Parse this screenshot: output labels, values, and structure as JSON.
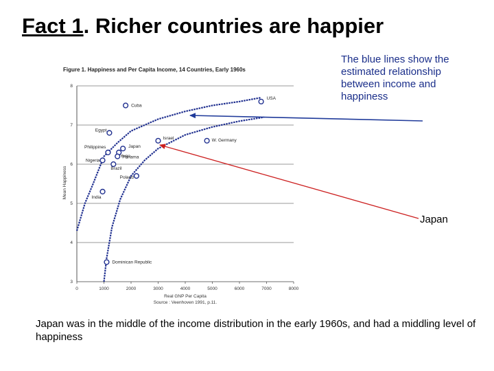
{
  "slide": {
    "title_prefix": "Fact 1",
    "title_rest": ". Richer countries are happier",
    "blue_note": "The blue lines show the estimated relationship between income and happiness",
    "japan_note": "Japan",
    "bottom_note": "Japan was in the middle of the income distribution in the early 1960s, and had a middling level of happiness"
  },
  "colors": {
    "curve": "#1f2f8f",
    "blue_arrow": "#1f3a9a",
    "red_arrow": "#cc1f1f",
    "axis": "#555555"
  },
  "chart_data": {
    "type": "scatter",
    "title": "Figure 1. Happiness and Per Capita Income, 14 Countries, Early 1960s",
    "xlabel": "Real GNP Per Capita",
    "ylabel": "Mean Happiness",
    "source": "Source : Veenhoven 1991, p.11.",
    "xlim": [
      0,
      8000
    ],
    "ylim": [
      3,
      8
    ],
    "xticks": [
      "0",
      "1000",
      "2000",
      "3000",
      "4000",
      "5000",
      "6000",
      "7000",
      "8000"
    ],
    "yticks": [
      "3",
      "4",
      "5",
      "6",
      "7",
      "8"
    ],
    "points": [
      {
        "label": "Cuba",
        "x": 1800,
        "y": 7.5
      },
      {
        "label": "USA",
        "x": 6800,
        "y": 7.6
      },
      {
        "label": "Egypt",
        "x": 1200,
        "y": 6.8
      },
      {
        "label": "Israel",
        "x": 3000,
        "y": 6.6
      },
      {
        "label": "W. Germany",
        "x": 4800,
        "y": 6.6
      },
      {
        "label": "Philippines",
        "x": 1150,
        "y": 6.3
      },
      {
        "label": "Japan",
        "x": 1700,
        "y": 6.4
      },
      {
        "label": "Yugo",
        "x": 1550,
        "y": 6.3
      },
      {
        "label": "Panama",
        "x": 1500,
        "y": 6.2
      },
      {
        "label": "Nigeria",
        "x": 950,
        "y": 6.1
      },
      {
        "label": "Brazil",
        "x": 1350,
        "y": 6.0
      },
      {
        "label": "Poland",
        "x": 2200,
        "y": 5.7
      },
      {
        "label": "India",
        "x": 950,
        "y": 5.3
      },
      {
        "label": "Dominican Republic",
        "x": 1100,
        "y": 3.5
      }
    ],
    "fitted_curves": [
      {
        "x": [
          0,
          300,
          600,
          1000,
          1500,
          2000,
          3000,
          4000,
          5000,
          6000,
          6800
        ],
        "y": [
          4.3,
          5.0,
          5.5,
          6.2,
          6.55,
          6.85,
          7.15,
          7.35,
          7.5,
          7.6,
          7.7
        ]
      },
      {
        "x": [
          1000,
          1100,
          1300,
          1600,
          2000,
          2500,
          3000,
          4000,
          5000,
          6000,
          6900
        ],
        "y": [
          3.0,
          3.6,
          4.4,
          5.1,
          5.7,
          6.1,
          6.4,
          6.75,
          6.95,
          7.1,
          7.2
        ]
      }
    ]
  }
}
